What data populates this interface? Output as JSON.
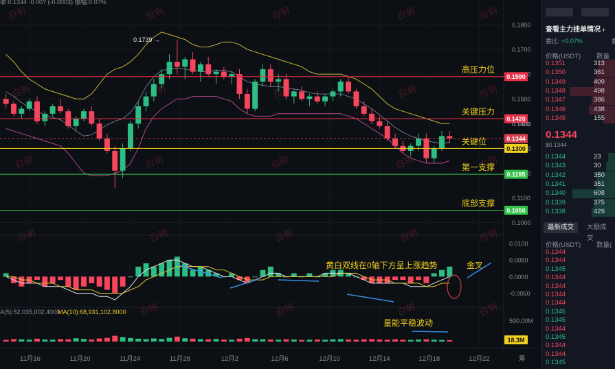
{
  "chart": {
    "top_clip": "收:0.1344  -0.00?  (-0.0003)  振幅:0.0?%",
    "price_axis": [
      "0.1800",
      "0.1700",
      "0.1600",
      "0.1500",
      "0.1400",
      "0.1300",
      "0.1200",
      "0.1100",
      "0.1000"
    ],
    "macd_axis": [
      "0.0100",
      "0.0050",
      "0.0000",
      "-0.0050"
    ],
    "volume_axis_label": "500.00M",
    "x_dates": [
      "11月16",
      "11月20",
      "11月24",
      "11月28",
      "12月2",
      "12月6",
      "12月10",
      "12月14",
      "12月18",
      "12月22"
    ],
    "high_marker": "0.1739",
    "levels": [
      {
        "name": "高压力位",
        "price": 0.159,
        "price_label": "0.1590",
        "color": "#e8304a",
        "tag_bg": "#e8304a",
        "tag_fg": "#ffffff"
      },
      {
        "name": "关键压力",
        "price": 0.142,
        "price_label": "0.1420",
        "color": "#e8304a",
        "tag_bg": "#e8304a",
        "tag_fg": "#ffffff"
      },
      {
        "name": "关键位",
        "price": 0.13,
        "price_label": "0.1300",
        "color": "#f0d020",
        "tag_bg": "#f0d020",
        "tag_fg": "#111111"
      },
      {
        "name": "第一支撑",
        "price": 0.1195,
        "price_label": "0.1195",
        "color": "#33c24a",
        "tag_bg": "#33c24a",
        "tag_fg": "#ffffff"
      },
      {
        "name": "底部支撑",
        "price": 0.105,
        "price_label": "0.1050",
        "color": "#33c24a",
        "tag_bg": "#33c24a",
        "tag_fg": "#ffffff"
      }
    ],
    "current_price": {
      "value": 0.1344,
      "label": "0.1344"
    },
    "small_price_tag": "0.1400",
    "macd_annotation": "黄白双线在0轴下方呈上涨趋势",
    "golden_cross": "金叉",
    "volume_annotation": "量能平稳波动",
    "ma_text": "A(5):52,035,002.4000",
    "ma10_text": "MA(10):68,931,102.8000",
    "volume_tag": "18.3M",
    "axis_corner": "筹",
    "watermark": "白玥"
  },
  "chart_data": {
    "type": "candlestick",
    "price_range": [
      0.096,
      0.186
    ],
    "candles": [
      [
        0.15,
        0.152,
        0.146,
        0.148
      ],
      [
        0.148,
        0.149,
        0.143,
        0.144
      ],
      [
        0.144,
        0.147,
        0.142,
        0.146
      ],
      [
        0.146,
        0.15,
        0.145,
        0.149
      ],
      [
        0.149,
        0.151,
        0.14,
        0.141
      ],
      [
        0.141,
        0.145,
        0.139,
        0.144
      ],
      [
        0.144,
        0.148,
        0.143,
        0.147
      ],
      [
        0.147,
        0.15,
        0.144,
        0.145
      ],
      [
        0.145,
        0.146,
        0.138,
        0.139
      ],
      [
        0.139,
        0.143,
        0.137,
        0.142
      ],
      [
        0.142,
        0.146,
        0.141,
        0.145
      ],
      [
        0.145,
        0.147,
        0.139,
        0.14
      ],
      [
        0.14,
        0.142,
        0.133,
        0.134
      ],
      [
        0.134,
        0.136,
        0.128,
        0.129
      ],
      [
        0.129,
        0.131,
        0.114,
        0.121
      ],
      [
        0.121,
        0.132,
        0.118,
        0.13
      ],
      [
        0.13,
        0.141,
        0.129,
        0.14
      ],
      [
        0.14,
        0.149,
        0.138,
        0.147
      ],
      [
        0.147,
        0.153,
        0.145,
        0.151
      ],
      [
        0.151,
        0.158,
        0.149,
        0.156
      ],
      [
        0.156,
        0.162,
        0.154,
        0.16
      ],
      [
        0.16,
        0.168,
        0.158,
        0.165
      ],
      [
        0.165,
        0.174,
        0.16,
        0.163
      ],
      [
        0.163,
        0.167,
        0.158,
        0.166
      ],
      [
        0.166,
        0.169,
        0.16,
        0.161
      ],
      [
        0.161,
        0.165,
        0.157,
        0.164
      ],
      [
        0.164,
        0.167,
        0.159,
        0.16
      ],
      [
        0.16,
        0.162,
        0.156,
        0.161
      ],
      [
        0.161,
        0.163,
        0.158,
        0.159
      ],
      [
        0.159,
        0.161,
        0.156,
        0.16
      ],
      [
        0.16,
        0.162,
        0.15,
        0.152
      ],
      [
        0.152,
        0.154,
        0.144,
        0.146
      ],
      [
        0.146,
        0.158,
        0.145,
        0.157
      ],
      [
        0.157,
        0.164,
        0.155,
        0.162
      ],
      [
        0.162,
        0.164,
        0.155,
        0.157
      ],
      [
        0.157,
        0.16,
        0.153,
        0.158
      ],
      [
        0.158,
        0.16,
        0.15,
        0.151
      ],
      [
        0.151,
        0.154,
        0.148,
        0.153
      ],
      [
        0.153,
        0.155,
        0.149,
        0.15
      ],
      [
        0.15,
        0.152,
        0.147,
        0.151
      ],
      [
        0.151,
        0.153,
        0.148,
        0.149
      ],
      [
        0.149,
        0.152,
        0.147,
        0.151
      ],
      [
        0.151,
        0.154,
        0.149,
        0.153
      ],
      [
        0.153,
        0.158,
        0.151,
        0.157
      ],
      [
        0.157,
        0.159,
        0.152,
        0.153
      ],
      [
        0.153,
        0.154,
        0.146,
        0.147
      ],
      [
        0.147,
        0.149,
        0.143,
        0.144
      ],
      [
        0.144,
        0.146,
        0.14,
        0.141
      ],
      [
        0.141,
        0.143,
        0.138,
        0.139
      ],
      [
        0.139,
        0.141,
        0.133,
        0.134
      ],
      [
        0.134,
        0.136,
        0.13,
        0.131
      ],
      [
        0.131,
        0.133,
        0.128,
        0.129
      ],
      [
        0.129,
        0.132,
        0.127,
        0.131
      ],
      [
        0.131,
        0.136,
        0.129,
        0.134
      ],
      [
        0.134,
        0.136,
        0.124,
        0.126
      ],
      [
        0.126,
        0.131,
        0.124,
        0.13
      ],
      [
        0.13,
        0.137,
        0.129,
        0.135
      ],
      [
        0.135,
        0.137,
        0.132,
        0.134
      ]
    ],
    "upper_band": [
      0.168,
      0.165,
      0.161,
      0.158,
      0.156,
      0.154,
      0.153,
      0.152,
      0.151,
      0.15,
      0.15,
      0.152,
      0.156,
      0.16,
      0.162,
      0.163,
      0.165,
      0.168,
      0.172,
      0.175,
      0.177,
      0.176,
      0.175,
      0.174,
      0.172,
      0.171,
      0.171,
      0.172,
      0.173,
      0.173,
      0.172,
      0.17,
      0.169,
      0.168,
      0.167,
      0.166,
      0.165,
      0.164,
      0.163,
      0.161,
      0.16,
      0.16,
      0.16,
      0.16,
      0.159,
      0.158,
      0.156,
      0.154,
      0.151,
      0.148,
      0.146,
      0.145,
      0.144,
      0.143,
      0.142,
      0.141,
      0.14,
      0.14
    ],
    "lower_band": [
      0.138,
      0.137,
      0.136,
      0.135,
      0.134,
      0.133,
      0.132,
      0.131,
      0.128,
      0.124,
      0.12,
      0.119,
      0.119,
      0.119,
      0.12,
      0.121,
      0.124,
      0.13,
      0.138,
      0.143,
      0.146,
      0.148,
      0.15,
      0.15,
      0.151,
      0.151,
      0.151,
      0.151,
      0.15,
      0.149,
      0.146,
      0.144,
      0.143,
      0.143,
      0.143,
      0.144,
      0.144,
      0.144,
      0.144,
      0.144,
      0.144,
      0.144,
      0.144,
      0.144,
      0.143,
      0.142,
      0.14,
      0.138,
      0.136,
      0.134,
      0.131,
      0.128,
      0.126,
      0.125,
      0.124,
      0.124,
      0.124,
      0.125
    ],
    "macd_range": [
      -0.008,
      0.011
    ],
    "macd_hist": [
      0.001,
      -0.002,
      -0.003,
      -0.002,
      -0.001,
      -0.003,
      -0.002,
      -0.001,
      -0.003,
      -0.004,
      -0.003,
      -0.002,
      -0.003,
      -0.004,
      -0.005,
      -0.003,
      0.0,
      0.003,
      0.004,
      0.003,
      0.004,
      0.005,
      0.006,
      0.004,
      0.002,
      0.003,
      0.002,
      0.001,
      0.0,
      0.001,
      -0.001,
      -0.002,
      0.0,
      0.002,
      0.003,
      0.001,
      0.0,
      0.001,
      0.0,
      0.001,
      0.0,
      0.001,
      0.002,
      0.002,
      0.001,
      0.0,
      -0.001,
      -0.002,
      -0.002,
      -0.002,
      -0.001,
      -0.001,
      -0.002,
      -0.001,
      -0.002,
      0.001,
      0.002,
      0.003
    ],
    "dif": [
      0.0,
      -0.001,
      -0.002,
      -0.002,
      -0.002,
      -0.003,
      -0.003,
      -0.003,
      -0.004,
      -0.005,
      -0.005,
      -0.005,
      -0.006,
      -0.006,
      -0.007,
      -0.005,
      -0.003,
      0.0,
      0.002,
      0.003,
      0.004,
      0.005,
      0.005,
      0.004,
      0.003,
      0.003,
      0.002,
      0.001,
      0.0,
      0.0,
      -0.001,
      -0.002,
      -0.001,
      0.0,
      0.001,
      0.001,
      0.0,
      0.0,
      0.0,
      0.0,
      0.0,
      0.001,
      0.001,
      0.001,
      0.001,
      0.0,
      -0.001,
      -0.002,
      -0.002,
      -0.002,
      -0.002,
      -0.002,
      -0.003,
      -0.003,
      -0.003,
      -0.002,
      -0.001,
      0.0
    ],
    "dea": [
      0.0,
      0.0,
      -0.001,
      -0.001,
      -0.002,
      -0.002,
      -0.002,
      -0.003,
      -0.003,
      -0.004,
      -0.004,
      -0.004,
      -0.005,
      -0.005,
      -0.005,
      -0.005,
      -0.004,
      -0.003,
      -0.001,
      0.0,
      0.001,
      0.002,
      0.003,
      0.003,
      0.003,
      0.003,
      0.003,
      0.002,
      0.002,
      0.001,
      0.0,
      -0.001,
      -0.001,
      -0.001,
      0.0,
      0.0,
      0.0,
      0.0,
      0.0,
      0.0,
      0.0,
      0.0,
      0.0,
      0.001,
      0.001,
      0.001,
      0.0,
      -0.001,
      -0.001,
      -0.001,
      -0.002,
      -0.002,
      -0.002,
      -0.002,
      -0.003,
      -0.003,
      -0.002,
      -0.002
    ],
    "volume_scale_max": 1000,
    "volume": [
      40,
      60,
      55,
      45,
      70,
      50,
      45,
      60,
      55,
      80,
      65,
      50,
      75,
      90,
      140,
      110,
      85,
      70,
      60,
      75,
      65,
      90,
      120,
      80,
      70,
      60,
      55,
      65,
      50,
      45,
      70,
      85,
      60,
      55,
      50,
      45,
      55,
      50,
      40,
      45,
      50,
      45,
      55,
      60,
      50,
      45,
      55,
      60,
      50,
      45,
      55,
      45,
      40,
      50,
      55,
      45,
      40,
      35
    ]
  },
  "orderbook": {
    "title": "查看主力挂单情况",
    "ratio_label": "委比:",
    "ratio_value": "+0.07%",
    "ratio_right": "委",
    "col_price": "价格(USDT)",
    "col_qty": "数量",
    "asks": [
      {
        "p": "0.1351",
        "q": "313",
        "w": 0.35
      },
      {
        "p": "0.1350",
        "q": "361",
        "w": 0.4
      },
      {
        "p": "0.1349",
        "q": "409",
        "w": 0.45
      },
      {
        "p": "0.1348",
        "q": "498",
        "w": 0.95
      },
      {
        "p": "0.1347",
        "q": "386",
        "w": 0.5
      },
      {
        "p": "0.1346",
        "q": "438",
        "w": 0.55
      },
      {
        "p": "0.1345",
        "q": "155",
        "w": 0.25
      }
    ],
    "mid_price": "0.1344",
    "mid_sub": "$0.1344",
    "bids": [
      {
        "p": "0.1344",
        "q": "23",
        "w": 0.15
      },
      {
        "p": "0.1343",
        "q": "30",
        "w": 0.2
      },
      {
        "p": "0.1342",
        "q": "350",
        "w": 0.4
      },
      {
        "p": "0.1341",
        "q": "351",
        "w": 0.4
      },
      {
        "p": "0.1340",
        "q": "608",
        "w": 0.9
      },
      {
        "p": "0.1339",
        "q": "375",
        "w": 0.45
      },
      {
        "p": "0.1338",
        "q": "429",
        "w": 0.5
      }
    ],
    "tab_latest": "最新成交",
    "tab_big": "大额成交",
    "trades_col_price": "价格(USDT)",
    "trades_col_qty": "数量(",
    "trades": [
      {
        "p": "0.1344",
        "c": "red"
      },
      {
        "p": "0.1344",
        "c": "red"
      },
      {
        "p": "0.1345",
        "c": "green"
      },
      {
        "p": "0.1344",
        "c": "red"
      },
      {
        "p": "0.1344",
        "c": "red"
      },
      {
        "p": "0.1344",
        "c": "red"
      },
      {
        "p": "0.1344",
        "c": "red"
      },
      {
        "p": "0.1345",
        "c": "green"
      },
      {
        "p": "0.1345",
        "c": "green"
      },
      {
        "p": "0.1344",
        "c": "red"
      },
      {
        "p": "0.1345",
        "c": "green"
      },
      {
        "p": "0.1344",
        "c": "red"
      },
      {
        "p": "0.1344",
        "c": "red"
      },
      {
        "p": "0.1345",
        "c": "green"
      }
    ]
  },
  "colors": {
    "up": "#2ebd85",
    "down": "#f6465d",
    "band": "#c8b83a",
    "lowband": "#b04a8a",
    "mid": "#8a8aa8"
  }
}
